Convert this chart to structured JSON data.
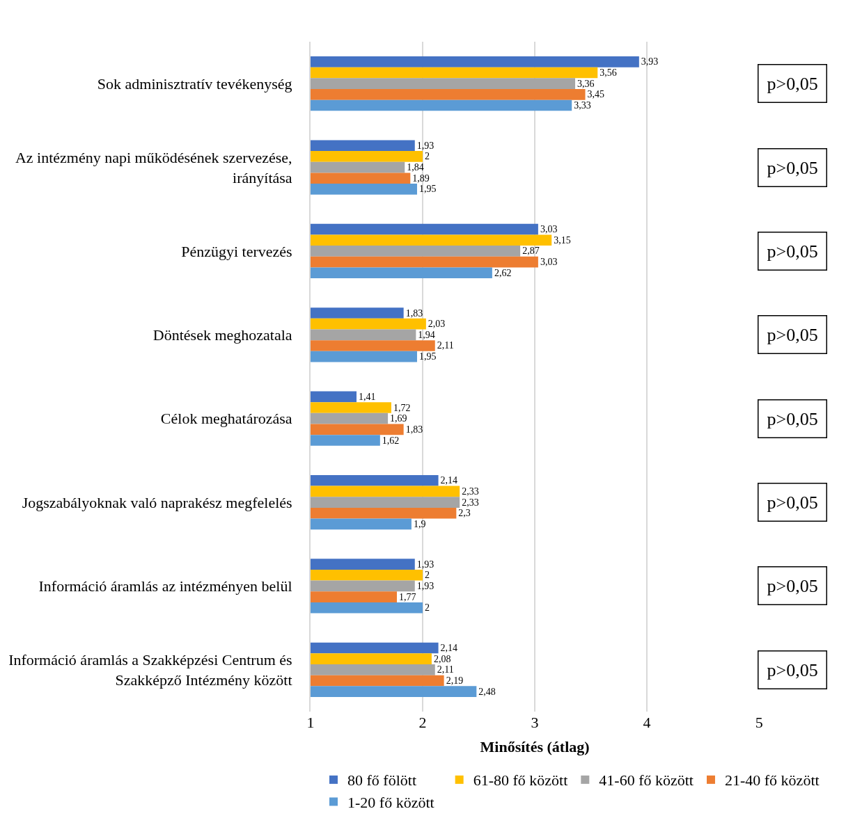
{
  "chart_data": {
    "type": "bar",
    "orientation": "horizontal",
    "xlabel": "Minősítés (átlag)",
    "categories": [
      "Sok adminisztratív tevékenység",
      "Az intézmény napi működésének szervezése, irányítása",
      "Pénzügyi tervezés",
      "Döntések meghozatala",
      "Célok meghatározása",
      "Jogszabályoknak való naprakész megfelelés",
      "Információ áramlás az intézményen belül",
      "Információ áramlás a Szakképzési Centrum és Szakképző Intézmény között"
    ],
    "series": [
      {
        "name": "80 fő fölött",
        "color": "#4472c4",
        "values": [
          3.93,
          1.93,
          3.03,
          1.83,
          1.41,
          2.14,
          1.93,
          2.14
        ],
        "value_labels": [
          "3,93",
          "1,93",
          "3,03",
          "1,83",
          "1,41",
          "2,14",
          "1,93",
          "2,14"
        ]
      },
      {
        "name": "61-80 fő között",
        "color": "#ffc000",
        "values": [
          3.56,
          2,
          3.15,
          2.03,
          1.72,
          2.33,
          2,
          2.08
        ],
        "value_labels": [
          "3,56",
          "2",
          "3,15",
          "2,03",
          "1,72",
          "2,33",
          "2",
          "2,08"
        ]
      },
      {
        "name": "41-60 fő között",
        "color": "#a5a5a5",
        "values": [
          3.36,
          1.84,
          2.87,
          1.94,
          1.69,
          2.33,
          1.93,
          2.11
        ],
        "value_labels": [
          "3,36",
          "1,84",
          "2,87",
          "1,94",
          "1,69",
          "2,33",
          "1,93",
          "2,11"
        ]
      },
      {
        "name": "21-40 fő között",
        "color": "#ed7d31",
        "values": [
          3.45,
          1.89,
          3.03,
          2.11,
          1.83,
          2.3,
          1.77,
          2.19
        ],
        "value_labels": [
          "3,45",
          "1,89",
          "3,03",
          "2,11",
          "1,83",
          "2,3",
          "1,77",
          "2,19"
        ]
      },
      {
        "name": "1-20 fő között",
        "color": "#5b9bd5",
        "values": [
          3.33,
          1.95,
          2.62,
          1.95,
          1.62,
          1.9,
          2,
          2.48
        ],
        "value_labels": [
          "3,33",
          "1,95",
          "2,62",
          "1,95",
          "1,62",
          "1,9",
          "2",
          "2,48"
        ]
      }
    ],
    "xlim": [
      1,
      5
    ],
    "xticks": [
      1,
      2,
      3,
      4,
      5
    ],
    "grid": "x",
    "legend": "bottom",
    "annotations": [
      "p>0,05",
      "p>0,05",
      "p>0,05",
      "p>0,05",
      "p>0,05",
      "p>0,05",
      "p>0,05",
      "p>0,05"
    ]
  }
}
